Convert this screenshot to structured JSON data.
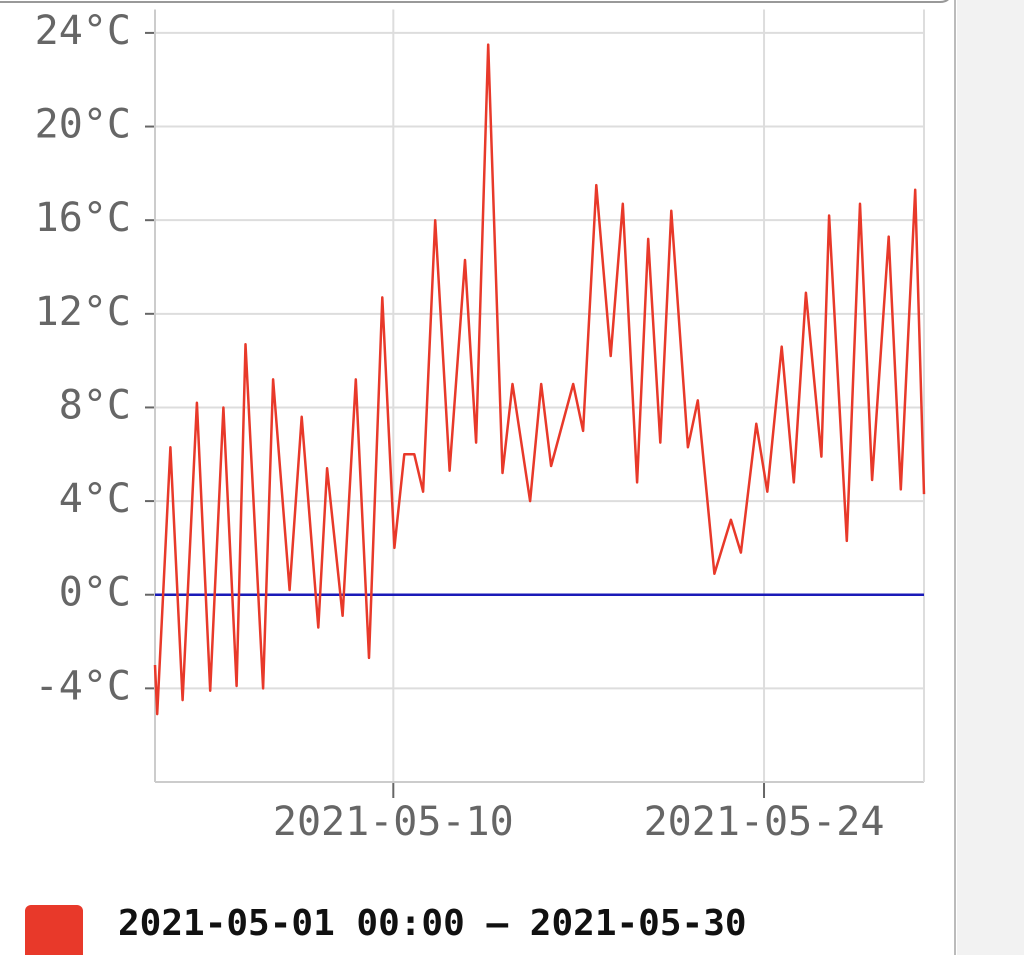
{
  "chart_data": {
    "type": "line",
    "ylim": [
      -8,
      25
    ],
    "yticks": [
      {
        "value": -4,
        "label": "-4°C"
      },
      {
        "value": 0,
        "label": "0°C"
      },
      {
        "value": 4,
        "label": "4°C"
      },
      {
        "value": 8,
        "label": "8°C"
      },
      {
        "value": 12,
        "label": "12°C"
      },
      {
        "value": 16,
        "label": "16°C"
      },
      {
        "value": 20,
        "label": "20°C"
      },
      {
        "value": 24,
        "label": "24°C"
      }
    ],
    "xlim": [
      "2021-05-01 00:00",
      "2021-05-30 01:00"
    ],
    "xticks": [
      "2021-05-10",
      "2021-05-24"
    ],
    "grid": true,
    "hline": 0,
    "hline_color": "#1a1ab8",
    "x": [
      "2021-05-01 00:00",
      "2021-05-01 02:00",
      "2021-05-01 14:00",
      "2021-05-02 01:00",
      "2021-05-02 14:00",
      "2021-05-03 02:00",
      "2021-05-03 14:00",
      "2021-05-04 02:00",
      "2021-05-04 10:00",
      "2021-05-05 02:00",
      "2021-05-05 11:00",
      "2021-05-06 02:00",
      "2021-05-06 13:00",
      "2021-05-07 04:00",
      "2021-05-07 12:00",
      "2021-05-08 02:00",
      "2021-05-08 14:00",
      "2021-05-09 02:00",
      "2021-05-09 14:00",
      "2021-05-10 01:00",
      "2021-05-10 10:00",
      "2021-05-10 19:00",
      "2021-05-11 03:00",
      "2021-05-11 14:00",
      "2021-05-12 03:00",
      "2021-05-12 17:00",
      "2021-05-13 03:00",
      "2021-05-13 14:00",
      "2021-05-14 03:00",
      "2021-05-14 12:00",
      "2021-05-15 04:00",
      "2021-05-15 14:00",
      "2021-05-15 23:00",
      "2021-05-16 19:00",
      "2021-05-17 04:00",
      "2021-05-17 16:00",
      "2021-05-18 05:00",
      "2021-05-18 16:00",
      "2021-05-19 05:00",
      "2021-05-19 15:00",
      "2021-05-20 02:00",
      "2021-05-20 12:00",
      "2021-05-21 03:00",
      "2021-05-21 12:00",
      "2021-05-22 03:00",
      "2021-05-22 18:00",
      "2021-05-23 03:00",
      "2021-05-23 17:00",
      "2021-05-24 03:00",
      "2021-05-24 16:00",
      "2021-05-25 03:00",
      "2021-05-25 14:00",
      "2021-05-26 04:00",
      "2021-05-26 11:00",
      "2021-05-27 03:00",
      "2021-05-27 15:00",
      "2021-05-28 02:00",
      "2021-05-28 17:00",
      "2021-05-29 04:00",
      "2021-05-29 17:00",
      "2021-05-30 01:00"
    ],
    "series": [
      {
        "name": "2021-05-01 00:00 – 2021-05-30",
        "color": "#e8392a",
        "values": [
          -3.0,
          -5.1,
          6.3,
          -4.5,
          8.2,
          -4.1,
          8.0,
          -3.9,
          10.7,
          -4.0,
          9.2,
          0.2,
          7.6,
          -1.4,
          5.4,
          -0.9,
          9.2,
          -2.7,
          12.7,
          2.0,
          6.0,
          6.0,
          4.4,
          16.0,
          5.3,
          14.3,
          6.5,
          23.5,
          5.2,
          9.0,
          4.0,
          9.0,
          5.5,
          9.0,
          7.0,
          17.5,
          10.2,
          16.7,
          4.8,
          15.2,
          6.5,
          16.4,
          6.3,
          8.3,
          0.9,
          3.2,
          1.8,
          7.3,
          4.4,
          10.6,
          4.8,
          12.9,
          5.9,
          16.2,
          2.3,
          16.7,
          4.9,
          15.3,
          4.5,
          17.3,
          4.3
        ]
      }
    ]
  }
}
